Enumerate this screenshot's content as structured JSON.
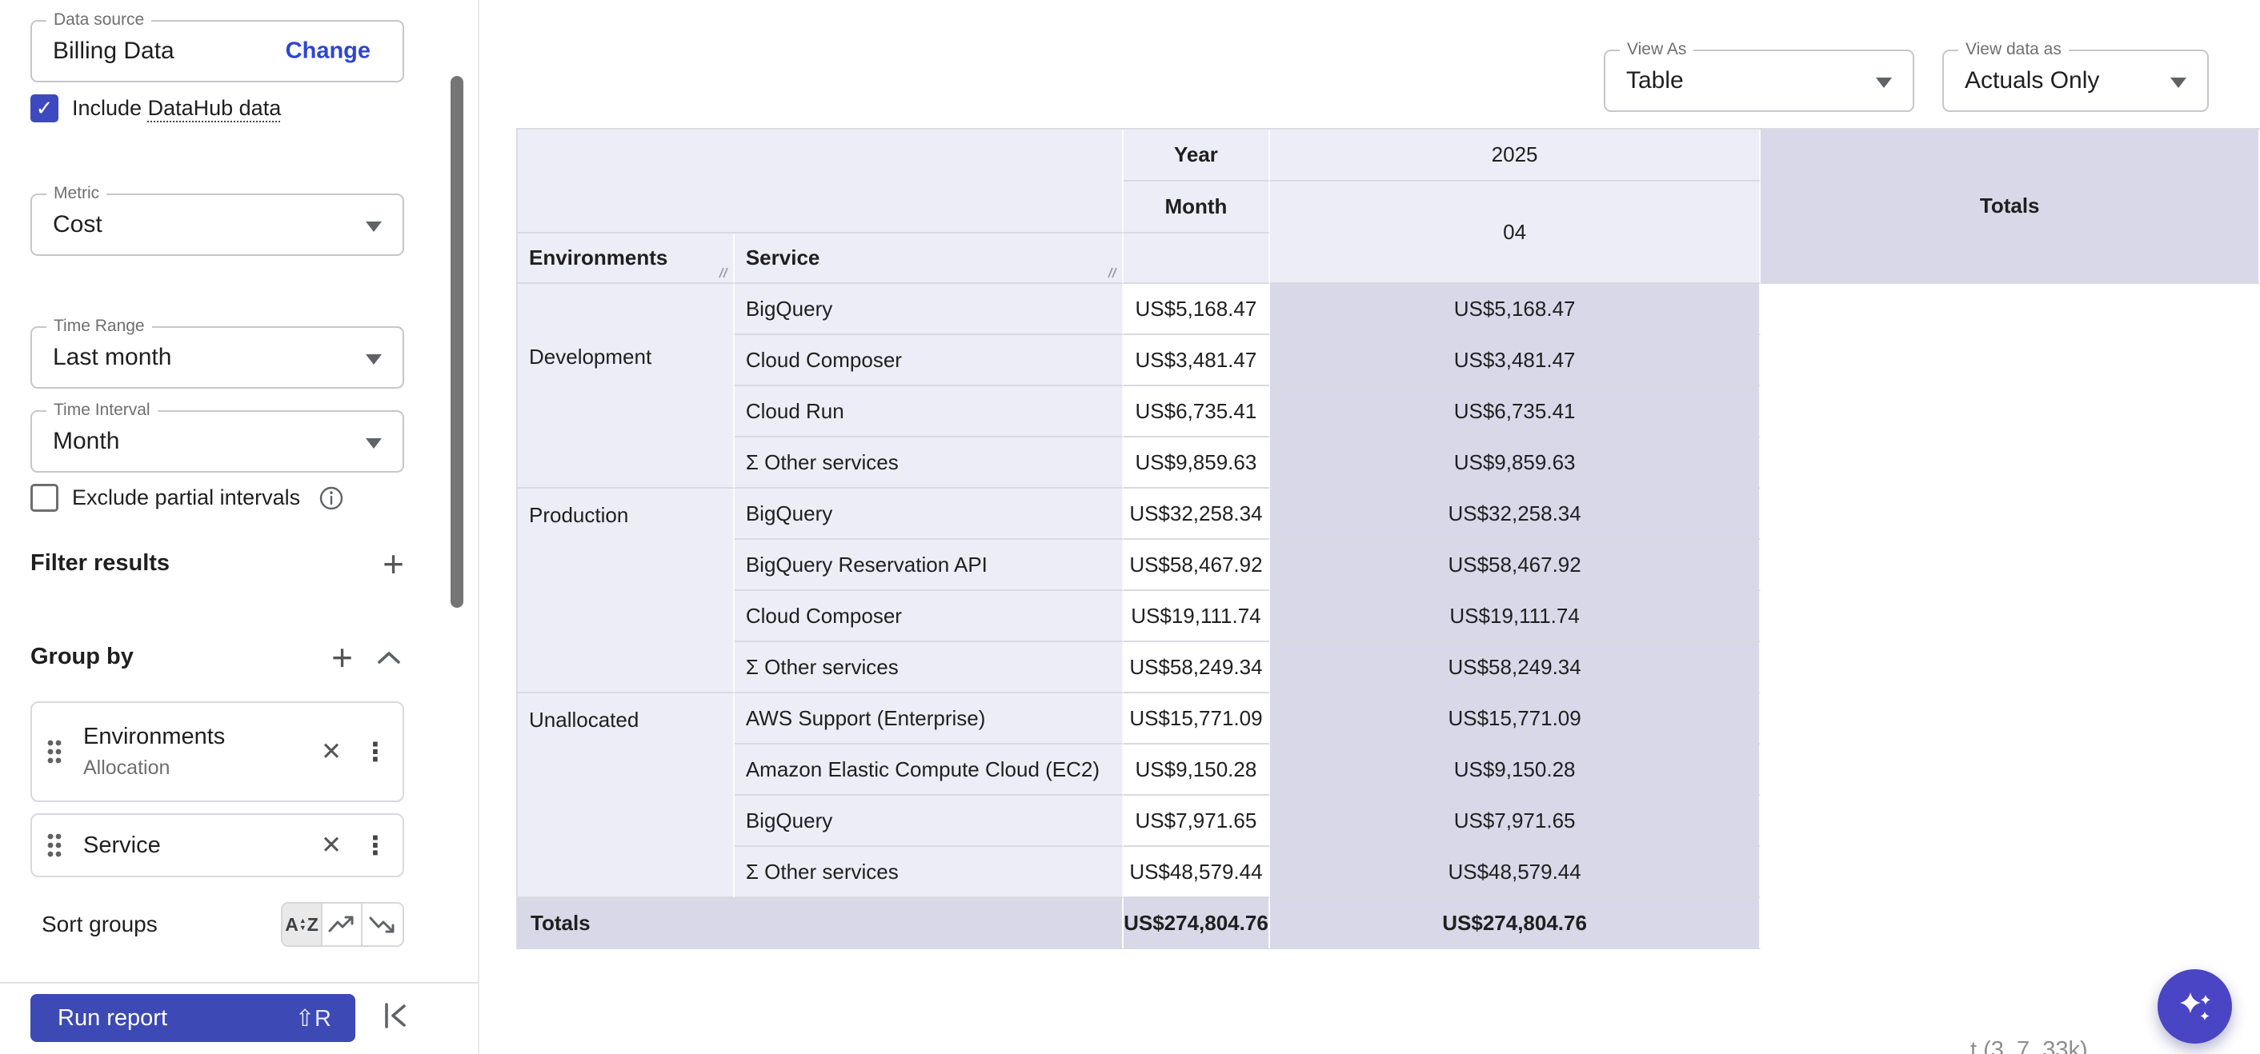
{
  "sidebar": {
    "data_source": {
      "label": "Data source",
      "value": "Billing Data",
      "change_label": "Change"
    },
    "include_datahub": {
      "prefix": "Include",
      "underlined": "DataHub data",
      "checked": true
    },
    "metric": {
      "label": "Metric",
      "value": "Cost"
    },
    "time_range": {
      "label": "Time Range",
      "value": "Last month"
    },
    "time_interval": {
      "label": "Time Interval",
      "value": "Month"
    },
    "exclude_partial": {
      "label": "Exclude partial intervals",
      "checked": false
    },
    "filter_results": {
      "label": "Filter results"
    },
    "group_by": {
      "label": "Group by",
      "items": [
        {
          "title": "Environments",
          "subtitle": "Allocation"
        },
        {
          "title": "Service",
          "subtitle": ""
        }
      ]
    },
    "sort_groups": {
      "label": "Sort groups",
      "selected_index": 0
    },
    "run_report": {
      "label": "Run report",
      "shortcut": "⇧R"
    }
  },
  "toolbar": {
    "view_as": {
      "label": "View As",
      "value": "Table"
    },
    "view_data_as": {
      "label": "View data as",
      "value": "Actuals Only"
    }
  },
  "table": {
    "year_label": "Year",
    "year_value": "2025",
    "month_label": "Month",
    "month_value": "04",
    "totals_column_header": "Totals",
    "col1_header": "Environments",
    "col2_header": "Service",
    "groups": [
      {
        "name": "Development",
        "rows": [
          {
            "service": "BigQuery",
            "value": "US$5,168.47",
            "total": "US$5,168.47"
          },
          {
            "service": "Cloud Composer",
            "value": "US$3,481.47",
            "total": "US$3,481.47"
          },
          {
            "service": "Cloud Run",
            "value": "US$6,735.41",
            "total": "US$6,735.41"
          },
          {
            "service": "Σ Other services",
            "value": "US$9,859.63",
            "total": "US$9,859.63"
          }
        ]
      },
      {
        "name": "Production",
        "rows": [
          {
            "service": "BigQuery",
            "value": "US$32,258.34",
            "total": "US$32,258.34"
          },
          {
            "service": "BigQuery Reservation API",
            "value": "US$58,467.92",
            "total": "US$58,467.92"
          },
          {
            "service": "Cloud Composer",
            "value": "US$19,111.74",
            "total": "US$19,111.74"
          },
          {
            "service": "Σ Other services",
            "value": "US$58,249.34",
            "total": "US$58,249.34"
          }
        ]
      },
      {
        "name": "Unallocated",
        "rows": [
          {
            "service": "AWS Support (Enterprise)",
            "value": "US$15,771.09",
            "total": "US$15,771.09"
          },
          {
            "service": "Amazon Elastic Compute Cloud (EC2)",
            "value": "US$9,150.28",
            "total": "US$9,150.28"
          },
          {
            "service": "BigQuery",
            "value": "US$7,971.65",
            "total": "US$7,971.65"
          },
          {
            "service": "Σ Other services",
            "value": "US$48,579.44",
            "total": "US$48,579.44"
          }
        ]
      },
      {
        "name": "Totals",
        "is_totals": true,
        "value": "US$274,804.76",
        "total": "US$274,804.76"
      }
    ]
  },
  "misc": {
    "clipped_footnote": "t  (3, 7, 33k)"
  }
}
